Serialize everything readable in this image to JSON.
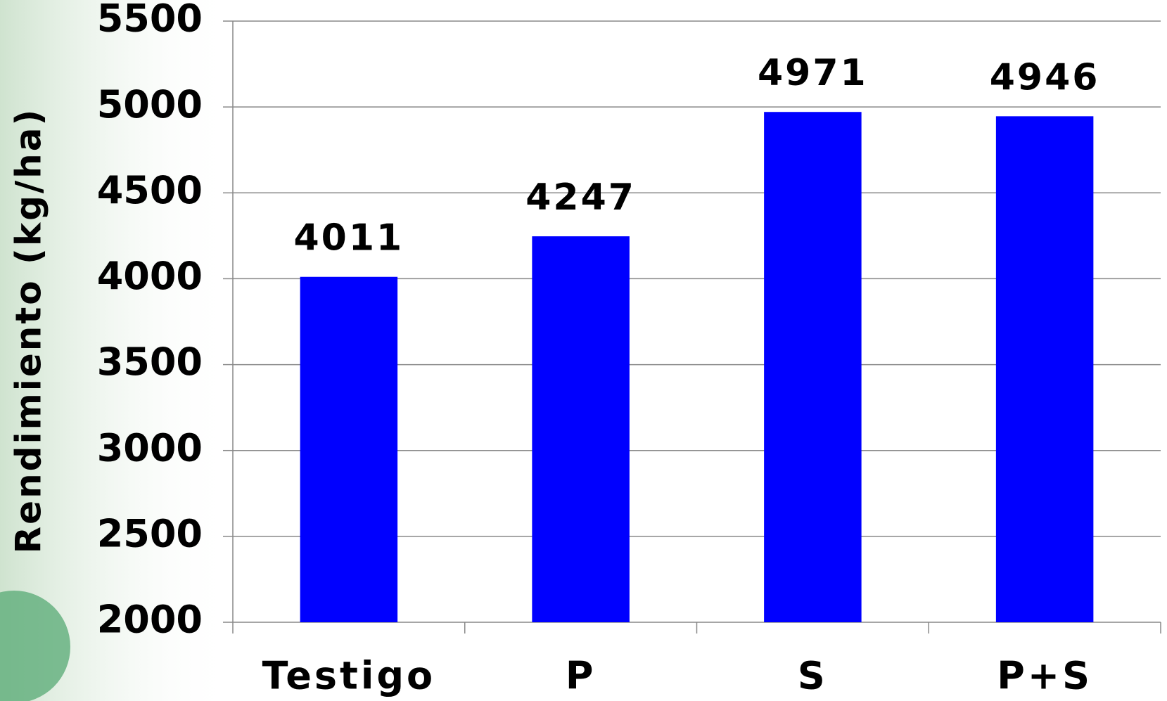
{
  "chart_data": {
    "type": "bar",
    "y_label": "Rendimiento (kg/ha)",
    "categories": [
      "Testigo",
      "P",
      "S",
      "P+S"
    ],
    "values": [
      4011,
      4247,
      4971,
      4946
    ],
    "color": "#0000ff",
    "ylim": [
      2000,
      5500
    ],
    "yticks": [
      2000,
      2500,
      3000,
      3500,
      4000,
      4500,
      5000,
      5500
    ],
    "grid": true
  }
}
